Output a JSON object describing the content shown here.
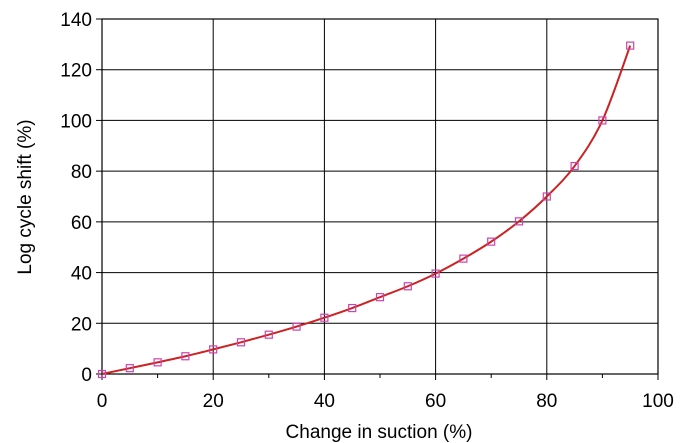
{
  "chart_data": {
    "type": "scatter",
    "title": "",
    "xlabel": "Change in suction (%)",
    "ylabel": "Log cycle shift (%)",
    "xlim": [
      0,
      100
    ],
    "ylim": [
      0,
      140
    ],
    "xticks": [
      "0",
      "20",
      "40",
      "60",
      "80",
      "100"
    ],
    "yticks": [
      "0",
      "20",
      "40",
      "60",
      "80",
      "100",
      "120",
      "140"
    ],
    "grid": true,
    "legend": "none",
    "series": [
      {
        "x": [
          0,
          5,
          10,
          15,
          20,
          25,
          30,
          35,
          40,
          45,
          50,
          55,
          60,
          65,
          70,
          75,
          80,
          85,
          90,
          95
        ],
        "y": [
          0,
          2.3,
          4.6,
          7.0,
          9.7,
          12.5,
          15.5,
          18.7,
          22.2,
          26.0,
          30.3,
          34.6,
          39.6,
          45.5,
          52.2,
          60.2,
          70.0,
          82.0,
          100.0,
          129.5
        ],
        "marker": "square",
        "marker_color": "#cc44aa",
        "line_color": "#cc2222"
      }
    ]
  }
}
